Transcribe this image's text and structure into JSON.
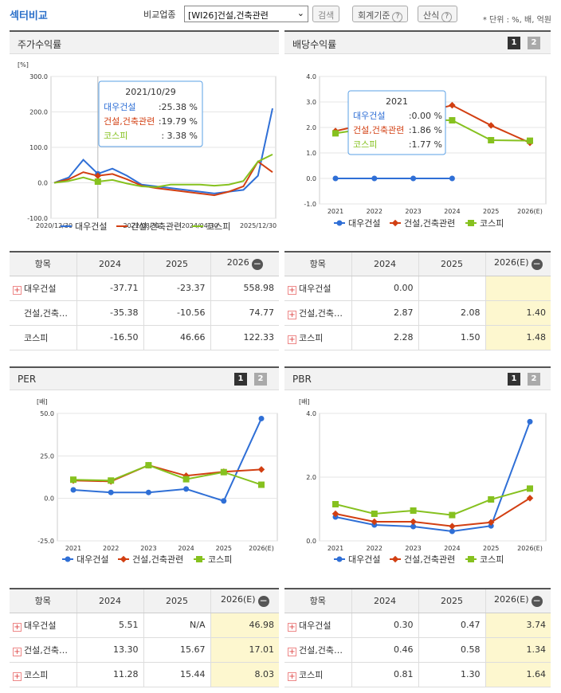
{
  "header": {
    "title": "섹터비교",
    "compare_label": "비교업종",
    "select_value": "[WI26]건설,건축관련",
    "search_btn": "검색",
    "accounting_btn": "회계기준",
    "formula_btn": "산식",
    "unit_note": "* 단위 : %, 배, 억원"
  },
  "colors": {
    "daewoo": "#2f6fd6",
    "sector": "#d23f12",
    "kospi": "#86c11f"
  },
  "legend": [
    "대우건설",
    "건설,건축관련",
    "코스피"
  ],
  "stock": {
    "title": "주가수익률",
    "unit": "[%]",
    "yticks": [
      "300.0",
      "200.0",
      "100.0",
      "0.0",
      "-100.0"
    ],
    "xticks": [
      "2020/12/30",
      "2022/08/31",
      "2024/04/30",
      "2025/12/30"
    ],
    "tooltip": {
      "date": "2021/10/29",
      "rows": [
        {
          "name": "대우건설",
          "value": ":25.38 %"
        },
        {
          "name": "건설,건축관련",
          "value": ":19.79 %"
        },
        {
          "name": "코스피",
          "value": ": 3.38 %"
        }
      ]
    },
    "table": {
      "headers": [
        "항목",
        "2024",
        "2025",
        "2026"
      ],
      "rows": [
        {
          "name": "대우건설",
          "v": [
            "-37.71",
            "-23.37",
            "558.98"
          ]
        },
        {
          "name": "건설,건축…",
          "v": [
            "-35.38",
            "-10.56",
            "74.77"
          ]
        },
        {
          "name": "코스피",
          "v": [
            "-16.50",
            "46.66",
            "122.33"
          ]
        }
      ]
    }
  },
  "dividend": {
    "title": "배당수익률",
    "pages": [
      "1",
      "2"
    ],
    "yticks": [
      "4.0",
      "3.0",
      "2.0",
      "1.0",
      "0.0",
      "-1.0"
    ],
    "xticks": [
      "2021",
      "2022",
      "2023",
      "2024",
      "2025",
      "2026(E)"
    ],
    "tooltip": {
      "date": "2021",
      "rows": [
        {
          "name": "대우건설",
          "value": ":0.00 %"
        },
        {
          "name": "건설,건축관련",
          "value": ":1.86 %"
        },
        {
          "name": "코스피",
          "value": ":1.77 %"
        }
      ]
    },
    "table": {
      "headers": [
        "항목",
        "2024",
        "2025",
        "2026(E)"
      ],
      "rows": [
        {
          "name": "대우건설",
          "v": [
            "0.00",
            "",
            ""
          ]
        },
        {
          "name": "건설,건축…",
          "v": [
            "2.87",
            "2.08",
            "1.40"
          ]
        },
        {
          "name": "코스피",
          "v": [
            "2.28",
            "1.50",
            "1.48"
          ]
        }
      ]
    }
  },
  "per": {
    "title": "PER",
    "pages": [
      "1",
      "2"
    ],
    "unit": "[배]",
    "yticks": [
      "50.0",
      "25.0",
      "0.0",
      "-25.0"
    ],
    "xticks": [
      "2021",
      "2022",
      "2023",
      "2024",
      "2025",
      "2026(E)"
    ],
    "table": {
      "headers": [
        "항목",
        "2024",
        "2025",
        "2026(E)"
      ],
      "rows": [
        {
          "name": "대우건설",
          "v": [
            "5.51",
            "N/A",
            "46.98"
          ]
        },
        {
          "name": "건설,건축…",
          "v": [
            "13.30",
            "15.67",
            "17.01"
          ]
        },
        {
          "name": "코스피",
          "v": [
            "11.28",
            "15.44",
            "8.03"
          ]
        }
      ]
    }
  },
  "pbr": {
    "title": "PBR",
    "pages": [
      "1",
      "2"
    ],
    "unit": "[배]",
    "yticks": [
      "4.0",
      "2.0",
      "0.0"
    ],
    "xticks": [
      "2021",
      "2022",
      "2023",
      "2024",
      "2025",
      "2026(E)"
    ],
    "table": {
      "headers": [
        "항목",
        "2024",
        "2025",
        "2026(E)"
      ],
      "rows": [
        {
          "name": "대우건설",
          "v": [
            "0.30",
            "0.47",
            "3.74"
          ]
        },
        {
          "name": "건설,건축…",
          "v": [
            "0.46",
            "0.58",
            "1.34"
          ]
        },
        {
          "name": "코스피",
          "v": [
            "0.81",
            "1.30",
            "1.64"
          ]
        }
      ]
    }
  },
  "chart_data": [
    {
      "type": "line",
      "ylim": [
        -100,
        300
      ],
      "x": [
        "2020/12/30",
        "2021/03",
        "2021/06",
        "2021/10/29",
        "2022/01",
        "2022/04",
        "2022/08/31",
        "2023/01",
        "2023/06",
        "2023/10",
        "2024/04/30",
        "2024/09",
        "2025/01",
        "2025/06",
        "2025/10",
        "2025/12/30"
      ],
      "series": [
        {
          "name": "대우건설",
          "values": [
            0,
            15,
            65,
            25.38,
            40,
            20,
            -5,
            -10,
            -15,
            -20,
            -25,
            -30,
            -25,
            -20,
            20,
            210
          ]
        },
        {
          "name": "건설,건축관련",
          "values": [
            0,
            10,
            30,
            19.79,
            25,
            10,
            -8,
            -15,
            -20,
            -25,
            -30,
            -35,
            -25,
            -10,
            60,
            30
          ]
        },
        {
          "name": "코스피",
          "values": [
            0,
            5,
            15,
            3.38,
            8,
            -2,
            -10,
            -12,
            -5,
            -5,
            -5,
            -8,
            -5,
            5,
            60,
            80
          ]
        }
      ]
    },
    {
      "type": "line",
      "ylim": [
        -1,
        4
      ],
      "categories": [
        "2021",
        "2022",
        "2023",
        "2024",
        "2025",
        "2026(E)"
      ],
      "series": [
        {
          "name": "대우건설",
          "values": [
            0.0,
            0.0,
            0.0,
            0.0,
            null,
            null
          ]
        },
        {
          "name": "건설,건축관련",
          "values": [
            1.86,
            2.2,
            2.5,
            2.87,
            2.08,
            1.4
          ]
        },
        {
          "name": "코스피",
          "values": [
            1.77,
            2.0,
            2.3,
            2.28,
            1.5,
            1.48
          ]
        }
      ]
    },
    {
      "type": "line",
      "ylim": [
        -25,
        50
      ],
      "categories": [
        "2021",
        "2022",
        "2023",
        "2024",
        "2025",
        "2026(E)"
      ],
      "series": [
        {
          "name": "대우건설",
          "values": [
            5,
            3.5,
            3.5,
            5.51,
            -1.5,
            46.98
          ]
        },
        {
          "name": "건설,건축관련",
          "values": [
            10.5,
            10,
            19.5,
            13.3,
            15.67,
            17.01
          ]
        },
        {
          "name": "코스피",
          "values": [
            11,
            10.5,
            19.5,
            11.28,
            15.44,
            8.03
          ]
        }
      ]
    },
    {
      "type": "line",
      "ylim": [
        0,
        4
      ],
      "categories": [
        "2021",
        "2022",
        "2023",
        "2024",
        "2025",
        "2026(E)"
      ],
      "series": [
        {
          "name": "대우건설",
          "values": [
            0.75,
            0.5,
            0.45,
            0.3,
            0.47,
            3.74
          ]
        },
        {
          "name": "건설,건축관련",
          "values": [
            0.85,
            0.6,
            0.6,
            0.46,
            0.58,
            1.34
          ]
        },
        {
          "name": "코스피",
          "values": [
            1.15,
            0.85,
            0.95,
            0.81,
            1.3,
            1.64
          ]
        }
      ]
    }
  ]
}
